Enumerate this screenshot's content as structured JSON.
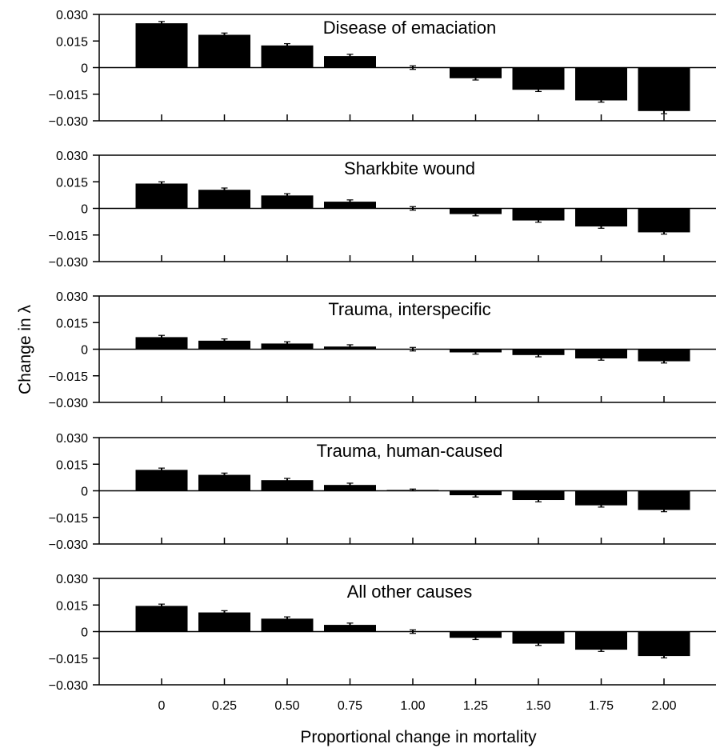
{
  "figure": {
    "ylabel": "Change in λ",
    "xlabel": "Proportional change in mortality"
  },
  "chart_data": [
    {
      "type": "bar",
      "title": "Disease of emaciation",
      "categories": [
        "0",
        "0.25",
        "0.50",
        "0.75",
        "1.00",
        "1.25",
        "1.50",
        "1.75",
        "2.00"
      ],
      "values": [
        0.025,
        0.0185,
        0.0125,
        0.0065,
        0.0,
        -0.006,
        -0.0125,
        -0.0185,
        -0.0245
      ],
      "errors": [
        0.001,
        0.001,
        0.001,
        0.001,
        0.001,
        0.001,
        0.001,
        0.001,
        0.0015
      ],
      "yticks": [
        "0.030",
        "0.015",
        "0",
        "−0.015",
        "−0.030"
      ],
      "ylim": [
        -0.03,
        0.03
      ]
    },
    {
      "type": "bar",
      "title": "Sharkbite wound",
      "categories": [
        "0",
        "0.25",
        "0.50",
        "0.75",
        "1.00",
        "1.25",
        "1.50",
        "1.75",
        "2.00"
      ],
      "values": [
        0.014,
        0.0105,
        0.0073,
        0.0038,
        0.0,
        -0.0032,
        -0.0068,
        -0.0102,
        -0.0135
      ],
      "errors": [
        0.001,
        0.001,
        0.001,
        0.001,
        0.001,
        0.001,
        0.001,
        0.001,
        0.001
      ],
      "yticks": [
        "0.030",
        "0.015",
        "0",
        "−0.015",
        "−0.030"
      ],
      "ylim": [
        -0.03,
        0.03
      ]
    },
    {
      "type": "bar",
      "title": "Trauma, interspecific",
      "categories": [
        "0",
        "0.25",
        "0.50",
        "0.75",
        "1.00",
        "1.25",
        "1.50",
        "1.75",
        "2.00"
      ],
      "values": [
        0.0068,
        0.0048,
        0.0032,
        0.0015,
        0.0,
        -0.0018,
        -0.0033,
        -0.0052,
        -0.0068
      ],
      "errors": [
        0.001,
        0.001,
        0.001,
        0.001,
        0.001,
        0.001,
        0.001,
        0.001,
        0.001
      ],
      "yticks": [
        "0.030",
        "0.015",
        "0",
        "−0.015",
        "−0.030"
      ],
      "ylim": [
        -0.03,
        0.03
      ]
    },
    {
      "type": "bar",
      "title": "Trauma, human-caused",
      "categories": [
        "0",
        "0.25",
        "0.50",
        "0.75",
        "1.00",
        "1.25",
        "1.50",
        "1.75",
        "2.00"
      ],
      "values": [
        0.0118,
        0.009,
        0.006,
        0.0033,
        0.0005,
        -0.0025,
        -0.0052,
        -0.0082,
        -0.0108
      ],
      "errors": [
        0.001,
        0.001,
        0.001,
        0.001,
        0.0005,
        0.001,
        0.001,
        0.001,
        0.001
      ],
      "yticks": [
        "0.030",
        "0.015",
        "0",
        "−0.015",
        "−0.030"
      ],
      "ylim": [
        -0.03,
        0.03
      ]
    },
    {
      "type": "bar",
      "title": "All other causes",
      "categories": [
        "0",
        "0.25",
        "0.50",
        "0.75",
        "1.00",
        "1.25",
        "1.50",
        "1.75",
        "2.00"
      ],
      "values": [
        0.0145,
        0.0108,
        0.0073,
        0.0038,
        0.0,
        -0.0035,
        -0.0068,
        -0.0102,
        -0.0138
      ],
      "errors": [
        0.001,
        0.001,
        0.001,
        0.001,
        0.001,
        0.001,
        0.001,
        0.001,
        0.001
      ],
      "yticks": [
        "0.030",
        "0.015",
        "0",
        "−0.015",
        "−0.030"
      ],
      "ylim": [
        -0.03,
        0.03
      ]
    }
  ]
}
